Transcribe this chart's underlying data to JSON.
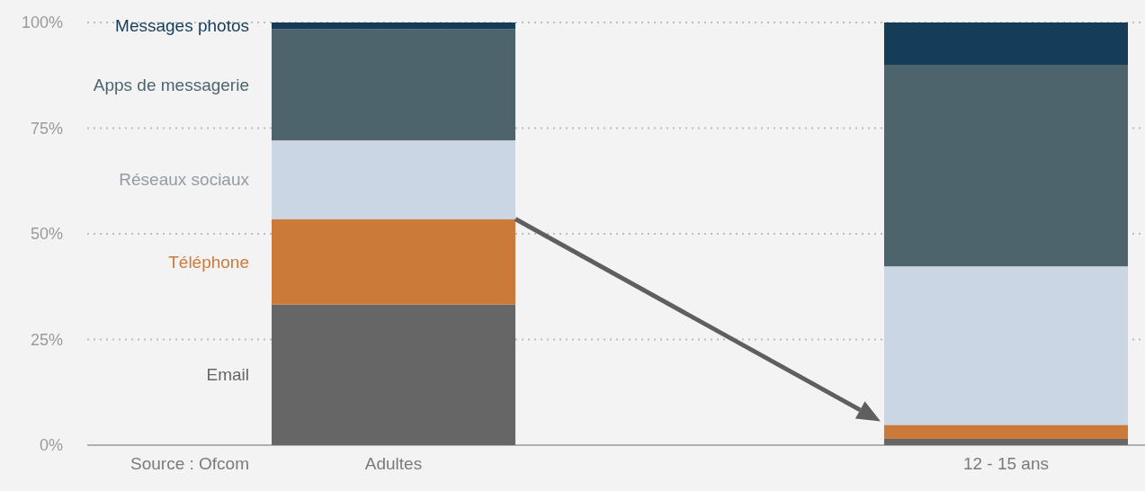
{
  "chart_data": {
    "type": "bar",
    "stacked": true,
    "categories": [
      "Adultes",
      "12 - 15 ans"
    ],
    "series": [
      {
        "name": "Email",
        "color": "#666666",
        "values": [
          33.3,
          1.5
        ]
      },
      {
        "name": "Téléphone",
        "color": "#cc7a3a",
        "values": [
          20.2,
          3.3
        ]
      },
      {
        "name": "Réseaux sociaux",
        "color": "#cbd6e4",
        "values": [
          18.6,
          37.5
        ]
      },
      {
        "name": "Apps de messagerie",
        "color": "#4d646c",
        "values": [
          26.3,
          47.7
        ]
      },
      {
        "name": "Messages photos",
        "color": "#153d5a",
        "values": [
          1.6,
          10.0
        ]
      }
    ],
    "ylim": [
      0,
      100
    ],
    "yticks": [
      {
        "value": 0,
        "label": "0%"
      },
      {
        "value": 25,
        "label": "25%"
      },
      {
        "value": 50,
        "label": "50%"
      },
      {
        "value": 75,
        "label": "75%"
      },
      {
        "value": 100,
        "label": "100%"
      }
    ],
    "grid": "y",
    "annotations": [
      "Source : Ofcom"
    ]
  }
}
